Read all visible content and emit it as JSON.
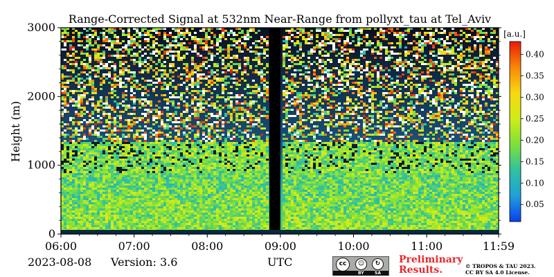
{
  "chart_data": {
    "type": "heatmap",
    "title": "Range-Corrected Signal at 532nm Near-Range from pollyxt_tau at Tel_Aviv",
    "xlabel": "UTC",
    "ylabel": "Height (m)",
    "x_ticks": [
      "06:00",
      "07:00",
      "08:00",
      "09:00",
      "10:00",
      "11:00",
      "11:59"
    ],
    "y_ticks": [
      "0",
      "1000",
      "2000",
      "3000"
    ],
    "ylim": [
      0,
      3000
    ],
    "no_data_interval": [
      "08:51",
      "09:00"
    ],
    "colorbar": {
      "unit": "[a.u.]",
      "ticks": [
        "0.05",
        "0.10",
        "0.15",
        "0.20",
        "0.25",
        "0.30",
        "0.35",
        "0.40"
      ],
      "range": [
        0.01,
        0.43
      ],
      "colormap": [
        "#0b3ff0",
        "#1fa0d8",
        "#2fc2a0",
        "#7fe03a",
        "#d0ec18",
        "#f8d810",
        "#f88808",
        "#e81a0a"
      ]
    }
  },
  "footer": {
    "date": "2023-08-08",
    "version": "Version: 3.6",
    "utc": "UTC",
    "preliminary_line1": "Preliminary",
    "preliminary_line2": "Results.",
    "copyright_line1": "© TROPOS & TAU 2023.",
    "copyright_line2": "CC BY SA 4.0 License.",
    "license_logo": {
      "cc": "cc",
      "by": "BY",
      "sa": "SA"
    }
  }
}
